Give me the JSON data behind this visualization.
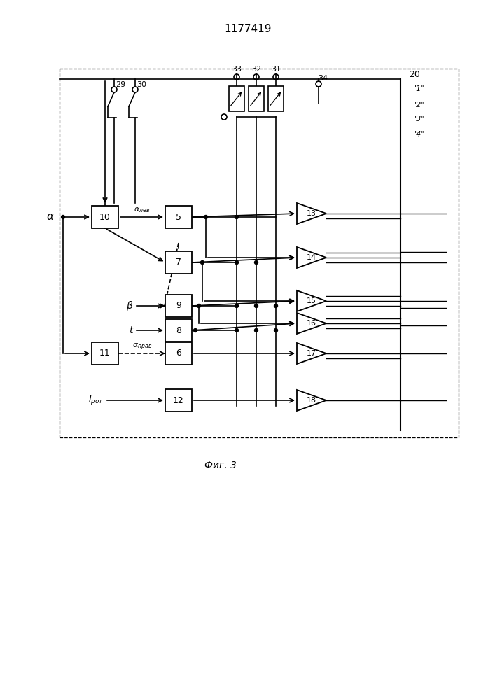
{
  "title": "1177419",
  "fig_caption": "Фиг. 3",
  "bg_color": "#ffffff",
  "line_color": "#000000"
}
